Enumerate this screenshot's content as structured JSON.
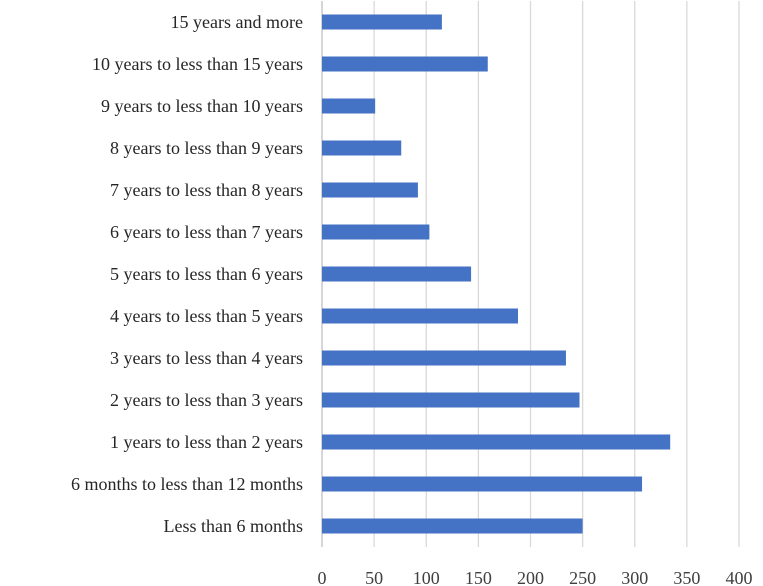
{
  "chart_data": {
    "type": "bar",
    "orientation": "horizontal",
    "categories": [
      "15 years and more",
      "10 years to less than 15 years",
      "9 years to less than 10 years",
      "8 years to less than 9 years",
      "7 years to less than 8 years",
      "6 years to less than 7 years",
      "5 years to less than 6 years",
      "4 years to less than 5 years",
      "3 years to less than 4 years",
      "2 years to less than 3 years",
      "1 years to less than 2 years",
      "6 months to less than 12 months",
      "Less than 6 months"
    ],
    "values": [
      115,
      159,
      51,
      76,
      92,
      103,
      143,
      188,
      234,
      247,
      334,
      307,
      250
    ],
    "xlim": [
      0,
      400
    ],
    "xticks": [
      0,
      50,
      100,
      150,
      200,
      250,
      300,
      350,
      400
    ],
    "tick_labels": [
      "0",
      "50",
      "100",
      "150",
      "200",
      "250",
      "300",
      "350",
      "400"
    ],
    "title": "",
    "xlabel": "",
    "ylabel": "",
    "grid": "vertical",
    "legend": "none",
    "bar_color": "#4472c4"
  }
}
